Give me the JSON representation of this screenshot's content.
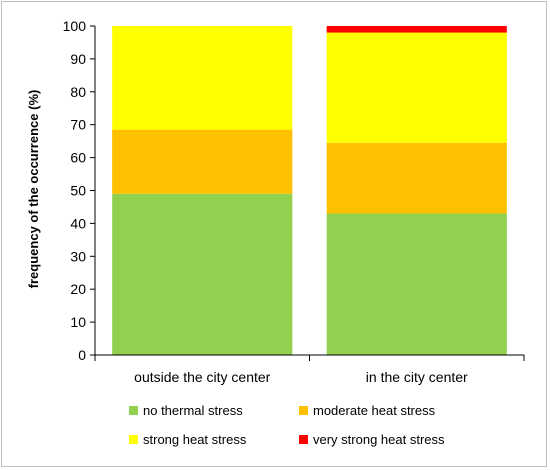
{
  "chart_data": {
    "type": "bar",
    "stacked": true,
    "title": "",
    "xlabel": "",
    "ylabel": "frequency of the occurrence (%)",
    "ylim": [
      0,
      100
    ],
    "yticks": [
      0,
      10,
      20,
      30,
      40,
      50,
      60,
      70,
      80,
      90,
      100
    ],
    "categories": [
      "outside the city center",
      "in the city center"
    ],
    "series": [
      {
        "name": "no thermal stress",
        "color": "#92d050",
        "values": [
          49,
          43
        ]
      },
      {
        "name": "moderate heat stress",
        "color": "#ffc000",
        "values": [
          19.5,
          21.5
        ]
      },
      {
        "name": "strong heat stress",
        "color": "#ffff00",
        "values": [
          31.5,
          33.5
        ]
      },
      {
        "name": "very strong heat stress",
        "color": "#ff0000",
        "values": [
          0,
          2
        ]
      }
    ],
    "legend_position": "bottom",
    "grid": false
  }
}
